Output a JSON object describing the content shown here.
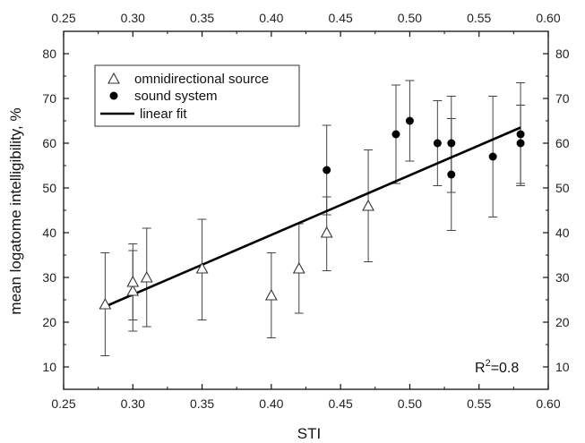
{
  "chart_data": {
    "type": "scatter",
    "xlabel": "STI",
    "ylabel": "mean logatome intelligibility, %",
    "xlim": [
      0.25,
      0.6
    ],
    "ylim": [
      5,
      85
    ],
    "x_ticks": [
      0.25,
      0.3,
      0.35,
      0.4,
      0.45,
      0.5,
      0.55,
      0.6
    ],
    "x_tick_labels": [
      "0.25",
      "0.30",
      "0.35",
      "0.40",
      "0.45",
      "0.50",
      "0.55",
      "0.60"
    ],
    "y_ticks": [
      10,
      20,
      30,
      40,
      50,
      60,
      70,
      80
    ],
    "y_tick_labels": [
      "10",
      "20",
      "30",
      "40",
      "50",
      "60",
      "70",
      "80"
    ],
    "mirrored_axes": [
      "top",
      "right"
    ],
    "grid": false,
    "legend_position": "top-left",
    "legend": [
      "omnidirectional source",
      "sound system",
      "linear fit"
    ],
    "annotation": {
      "text_main": "R",
      "text_sup": "2",
      "text_tail": "=0.8"
    },
    "series": [
      {
        "name": "omnidirectional source",
        "marker": "open-triangle",
        "points": [
          {
            "x": 0.28,
            "y": 24,
            "lo": 12.5,
            "hi": 35.5
          },
          {
            "x": 0.3,
            "y": 27,
            "lo": 18.0,
            "hi": 36.0
          },
          {
            "x": 0.3,
            "y": 29,
            "lo": 20.5,
            "hi": 37.5
          },
          {
            "x": 0.31,
            "y": 30,
            "lo": 19.0,
            "hi": 41.0
          },
          {
            "x": 0.35,
            "y": 32,
            "lo": 20.5,
            "hi": 43.0
          },
          {
            "x": 0.4,
            "y": 26,
            "lo": 16.5,
            "hi": 35.5
          },
          {
            "x": 0.42,
            "y": 32,
            "lo": 22.0,
            "hi": 42.0
          },
          {
            "x": 0.44,
            "y": 40,
            "lo": 31.5,
            "hi": 48.0
          },
          {
            "x": 0.47,
            "y": 46,
            "lo": 33.5,
            "hi": 58.5
          }
        ]
      },
      {
        "name": "sound system",
        "marker": "filled-circle",
        "points": [
          {
            "x": 0.44,
            "y": 54,
            "lo": 44.0,
            "hi": 64.0
          },
          {
            "x": 0.49,
            "y": 62,
            "lo": 51.0,
            "hi": 73.0
          },
          {
            "x": 0.5,
            "y": 65,
            "lo": 56.0,
            "hi": 74.0
          },
          {
            "x": 0.52,
            "y": 60,
            "lo": 50.5,
            "hi": 69.5
          },
          {
            "x": 0.53,
            "y": 60,
            "lo": 49.0,
            "hi": 70.5
          },
          {
            "x": 0.53,
            "y": 53,
            "lo": 40.5,
            "hi": 65.5
          },
          {
            "x": 0.56,
            "y": 57,
            "lo": 43.5,
            "hi": 70.5
          },
          {
            "x": 0.58,
            "y": 62,
            "lo": 51.0,
            "hi": 73.5
          },
          {
            "x": 0.58,
            "y": 60,
            "lo": 50.5,
            "hi": 68.5
          }
        ]
      },
      {
        "name": "linear fit",
        "type": "line",
        "x": [
          0.28,
          0.58
        ],
        "y": [
          23.5,
          63.5
        ]
      }
    ]
  }
}
